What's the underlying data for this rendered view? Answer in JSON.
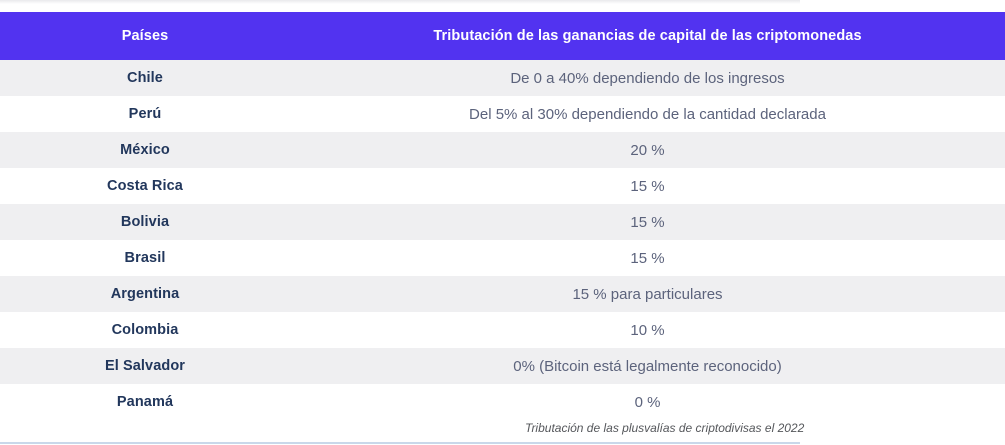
{
  "table": {
    "columns": {
      "countries_label": "Países",
      "tax_label": "Tributación de las ganancias de capital de las criptomonedas"
    },
    "rows": [
      {
        "country": "Chile",
        "tax": "De 0 a 40% dependiendo de los ingresos"
      },
      {
        "country": "Perú",
        "tax": "Del 5% al 30% dependiendo de la cantidad declarada"
      },
      {
        "country": "México",
        "tax": "20 %"
      },
      {
        "country": "Costa Rica",
        "tax": "15 %"
      },
      {
        "country": "Bolivia",
        "tax": "15 %"
      },
      {
        "country": "Brasil",
        "tax": "15 %"
      },
      {
        "country": "Argentina",
        "tax": "15 % para particulares"
      },
      {
        "country": "Colombia",
        "tax": "10 %"
      },
      {
        "country": "El Salvador",
        "tax": "0% (Bitcoin está legalmente reconocido)"
      },
      {
        "country": "Panamá",
        "tax": "0 %"
      }
    ],
    "caption": "Tributación de las plusvalías de criptodivisas el 2022"
  },
  "colors": {
    "header_bg": "#5233f0",
    "header_text": "#ffffff",
    "row_alt_bg": "#efeff1",
    "row_bg": "#ffffff",
    "country_text": "#22375c",
    "value_text": "#5c637c",
    "caption_text": "#55575b",
    "bottom_rule": "#c9d8ea"
  }
}
